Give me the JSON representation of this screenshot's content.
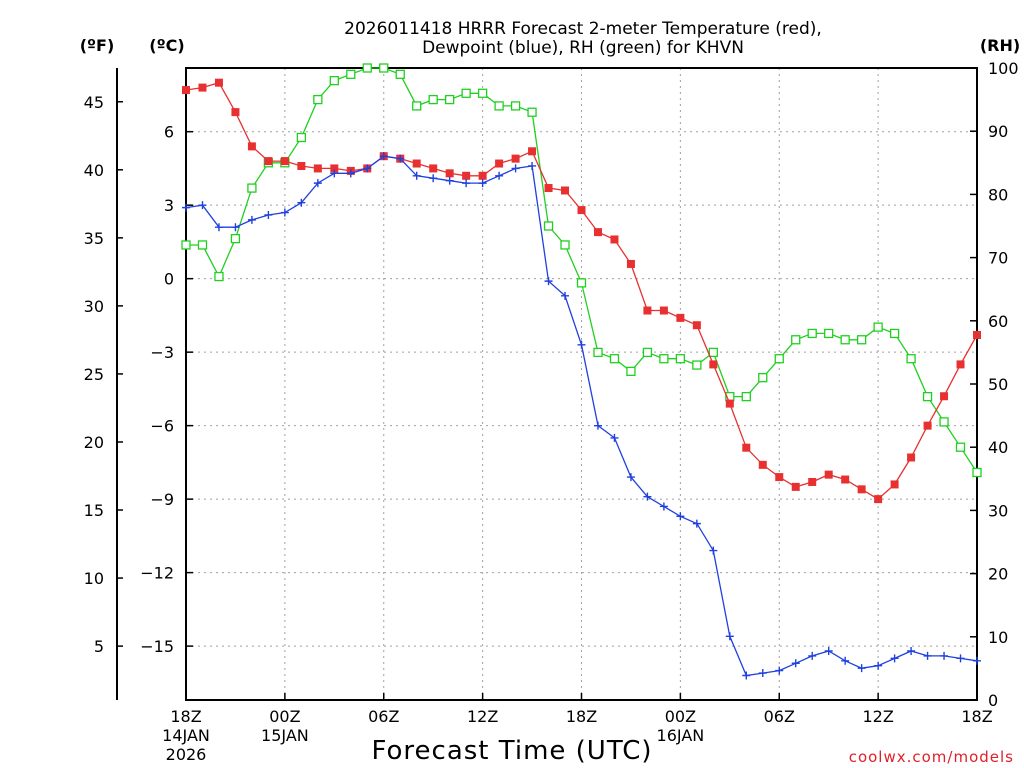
{
  "chart_data": {
    "type": "line",
    "title_line1": "2026011418 HRRR Forecast 2-meter Temperature (red),",
    "title_line2": "Dewpoint (blue), RH (green) for KHVN",
    "xlabel": "Forecast Time (UTC)",
    "credit": "coolwx.com/models",
    "unit_f": "(ºF)",
    "unit_c": "(ºC)",
    "unit_rh": "(RH)",
    "xlim": [
      0,
      48
    ],
    "ylim_c": [
      -17.2,
      8.6
    ],
    "ylim_rh": [
      0,
      100
    ],
    "x_ticks": [
      {
        "x": 0,
        "line1": "18Z",
        "line2": "14JAN",
        "line3": "2026"
      },
      {
        "x": 6,
        "line1": "00Z",
        "line2": "15JAN",
        "line3": ""
      },
      {
        "x": 12,
        "line1": "06Z",
        "line2": "",
        "line3": ""
      },
      {
        "x": 18,
        "line1": "12Z",
        "line2": "",
        "line3": ""
      },
      {
        "x": 24,
        "line1": "18Z",
        "line2": "",
        "line3": ""
      },
      {
        "x": 30,
        "line1": "00Z",
        "line2": "16JAN",
        "line3": ""
      },
      {
        "x": 36,
        "line1": "06Z",
        "line2": "",
        "line3": ""
      },
      {
        "x": 42,
        "line1": "12Z",
        "line2": "",
        "line3": ""
      },
      {
        "x": 48,
        "line1": "18Z",
        "line2": "",
        "line3": ""
      }
    ],
    "y_ticks_c": [
      {
        "v": 6,
        "label": "6"
      },
      {
        "v": 3,
        "label": "3"
      },
      {
        "v": 0,
        "label": "0"
      },
      {
        "v": -3,
        "label": "−3"
      },
      {
        "v": -6,
        "label": "−6"
      },
      {
        "v": -9,
        "label": "−9"
      },
      {
        "v": -12,
        "label": "−12"
      },
      {
        "v": -15,
        "label": "−15"
      }
    ],
    "y_ticks_f": [
      {
        "v": 45,
        "label": "45"
      },
      {
        "v": 40,
        "label": "40"
      },
      {
        "v": 35,
        "label": "35"
      },
      {
        "v": 30,
        "label": "30"
      },
      {
        "v": 25,
        "label": "25"
      },
      {
        "v": 20,
        "label": "20"
      },
      {
        "v": 15,
        "label": "15"
      },
      {
        "v": 10,
        "label": "10"
      },
      {
        "v": 5,
        "label": "5"
      }
    ],
    "y_ticks_rh": [
      {
        "v": 100,
        "label": "100"
      },
      {
        "v": 90,
        "label": "90"
      },
      {
        "v": 80,
        "label": "80"
      },
      {
        "v": 70,
        "label": "70"
      },
      {
        "v": 60,
        "label": "60"
      },
      {
        "v": 50,
        "label": "50"
      },
      {
        "v": 40,
        "label": "40"
      },
      {
        "v": 30,
        "label": "30"
      },
      {
        "v": 20,
        "label": "20"
      },
      {
        "v": 10,
        "label": "10"
      },
      {
        "v": 0,
        "label": "0"
      }
    ],
    "colors": {
      "temperature": "#e83030",
      "dewpoint": "#2040e0",
      "rh": "#20d020",
      "grid": "#a0a0a0"
    },
    "series": [
      {
        "name": "Temperature (°C)",
        "axis": "c",
        "marker": "filled-square",
        "color": "#e83030",
        "x": [
          0,
          1,
          2,
          3,
          4,
          5,
          6,
          7,
          8,
          9,
          10,
          11,
          12,
          13,
          14,
          15,
          16,
          17,
          18,
          19,
          20,
          21,
          22,
          23,
          24,
          25,
          26,
          27,
          28,
          29,
          30,
          31,
          32,
          33,
          34,
          35,
          36,
          37,
          38,
          39,
          40,
          41,
          42,
          43,
          44,
          45,
          46,
          47,
          48
        ],
        "values": [
          7.7,
          7.8,
          8.0,
          6.8,
          5.4,
          4.8,
          4.8,
          4.6,
          4.5,
          4.5,
          4.4,
          4.5,
          5.0,
          4.9,
          4.7,
          4.5,
          4.3,
          4.2,
          4.2,
          4.7,
          4.9,
          5.2,
          3.7,
          3.6,
          2.8,
          1.9,
          1.6,
          0.6,
          -1.3,
          -1.3,
          -1.6,
          -1.9,
          -3.5,
          -5.1,
          -6.9,
          -7.6,
          -8.1,
          -8.5,
          -8.3,
          -8.0,
          -8.2,
          -8.6,
          -9.0,
          -8.4,
          -7.3,
          -6.0,
          -4.8,
          -3.5,
          -2.3
        ]
      },
      {
        "name": "Dewpoint (°C)",
        "axis": "c",
        "marker": "plus",
        "color": "#2040e0",
        "x": [
          0,
          1,
          2,
          3,
          4,
          5,
          6,
          7,
          8,
          9,
          10,
          11,
          12,
          13,
          14,
          15,
          16,
          17,
          18,
          19,
          20,
          21,
          22,
          23,
          24,
          25,
          26,
          27,
          28,
          29,
          30,
          31,
          32,
          33,
          34,
          35,
          36,
          37,
          38,
          39,
          40,
          41,
          42,
          43,
          44,
          45,
          46,
          47,
          48
        ],
        "values": [
          2.9,
          3.0,
          2.1,
          2.1,
          2.4,
          2.6,
          2.7,
          3.1,
          3.9,
          4.3,
          4.3,
          4.5,
          5.0,
          4.9,
          4.2,
          4.1,
          4.0,
          3.9,
          3.9,
          4.2,
          4.5,
          4.6,
          -0.1,
          -0.7,
          -2.7,
          -6.0,
          -6.5,
          -8.1,
          -8.9,
          -9.3,
          -9.7,
          -10.0,
          -11.1,
          -14.6,
          -16.2,
          -16.1,
          -16.0,
          -15.7,
          -15.4,
          -15.2,
          -15.6,
          -15.9,
          -15.8,
          -15.5,
          -15.2,
          -15.4,
          -15.4,
          -15.5,
          -15.6
        ]
      },
      {
        "name": "RH (%)",
        "axis": "rh",
        "marker": "open-square",
        "color": "#20d020",
        "x": [
          0,
          1,
          2,
          3,
          4,
          5,
          6,
          7,
          8,
          9,
          10,
          11,
          12,
          13,
          14,
          15,
          16,
          17,
          18,
          19,
          20,
          21,
          22,
          23,
          24,
          25,
          26,
          27,
          28,
          29,
          30,
          31,
          32,
          33,
          34,
          35,
          36,
          37,
          38,
          39,
          40,
          41,
          42,
          43,
          44,
          45,
          46,
          47,
          48
        ],
        "values": [
          72,
          72,
          67,
          73,
          81,
          85,
          85,
          89,
          95,
          98,
          99,
          100,
          100,
          99,
          94,
          95,
          95,
          96,
          96,
          94,
          94,
          93,
          75,
          72,
          66,
          55,
          54,
          52,
          55,
          54,
          54,
          53,
          55,
          48,
          48,
          51,
          54,
          57,
          58,
          58,
          57,
          57,
          59,
          58,
          54,
          48,
          44,
          40,
          36
        ]
      }
    ]
  }
}
